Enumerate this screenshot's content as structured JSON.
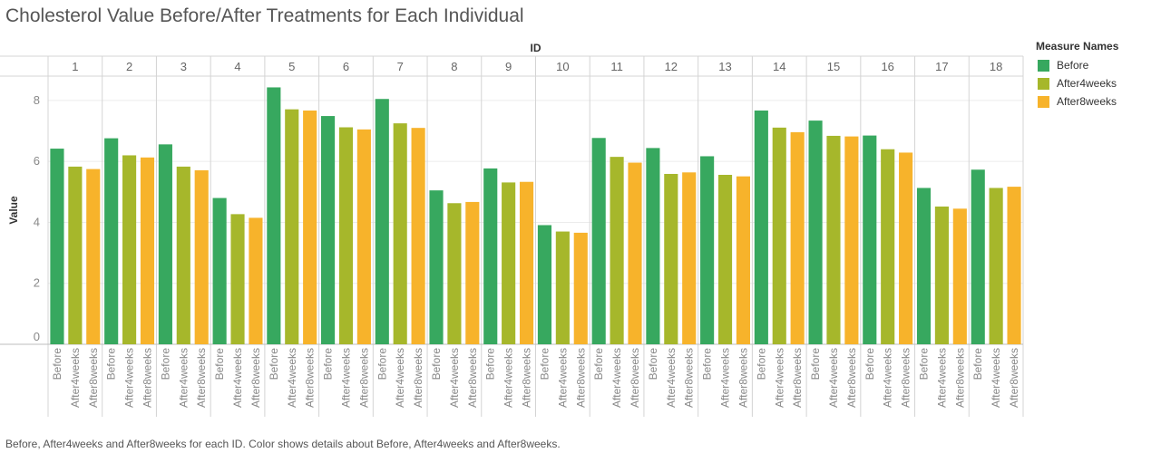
{
  "title": "Cholesterol Value Before/After Treatments for Each Individual",
  "caption": "Before, After4weeks and After8weeks for each ID.  Color shows details about Before, After4weeks and After8weeks.",
  "legend": {
    "title": "Measure Names",
    "items": [
      {
        "label": "Before",
        "color": "#37a85f"
      },
      {
        "label": "After4weeks",
        "color": "#a6b72b"
      },
      {
        "label": "After8weeks",
        "color": "#f7b32b"
      }
    ]
  },
  "chart_data": {
    "type": "bar",
    "x_header": "ID",
    "ylabel": "Value",
    "ylim": [
      0,
      8.8
    ],
    "yticks": [
      0,
      2,
      4,
      6,
      8
    ],
    "grid": true,
    "legend_position": "right",
    "categories": [
      "1",
      "2",
      "3",
      "4",
      "5",
      "6",
      "7",
      "8",
      "9",
      "10",
      "11",
      "12",
      "13",
      "14",
      "15",
      "16",
      "17",
      "18"
    ],
    "series": [
      {
        "name": "Before",
        "color": "#37a85f",
        "values": [
          6.42,
          6.76,
          6.56,
          4.8,
          8.43,
          7.49,
          8.05,
          5.05,
          5.77,
          3.91,
          6.77,
          6.44,
          6.17,
          7.67,
          7.34,
          6.85,
          5.13,
          5.73
        ]
      },
      {
        "name": "After4weeks",
        "color": "#a6b72b",
        "values": [
          5.83,
          6.2,
          5.83,
          4.27,
          7.71,
          7.12,
          7.25,
          4.63,
          5.31,
          3.7,
          6.15,
          5.59,
          5.56,
          7.11,
          6.84,
          6.4,
          4.52,
          5.13
        ]
      },
      {
        "name": "After8weeks",
        "color": "#f7b32b",
        "values": [
          5.75,
          6.13,
          5.71,
          4.15,
          7.67,
          7.05,
          7.1,
          4.67,
          5.33,
          3.66,
          5.96,
          5.64,
          5.51,
          6.96,
          6.82,
          6.29,
          4.45,
          5.17
        ]
      }
    ]
  }
}
